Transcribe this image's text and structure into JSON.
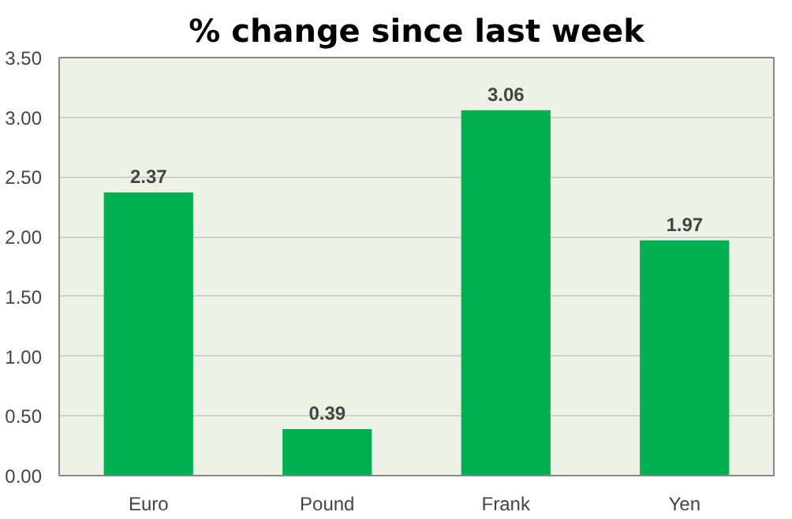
{
  "chart_data": {
    "type": "bar",
    "title": "% change since last week",
    "categories": [
      "Euro",
      "Pound",
      "Frank",
      "Yen"
    ],
    "values": [
      2.37,
      0.39,
      3.06,
      1.97
    ],
    "color": "#00b050",
    "ylim": [
      0,
      3.5
    ],
    "yticks": [
      {
        "value": 0,
        "label": "0.00"
      },
      {
        "value": 0.5,
        "label": "0.50"
      },
      {
        "value": 1,
        "label": "1.00"
      },
      {
        "value": 1.5,
        "label": "1.50"
      },
      {
        "value": 2,
        "label": "2.00"
      },
      {
        "value": 2.5,
        "label": "2.50"
      },
      {
        "value": 3,
        "label": "3.00"
      },
      {
        "value": 3.5,
        "label": "3.50"
      }
    ],
    "grid": "y",
    "data_labels": true
  }
}
